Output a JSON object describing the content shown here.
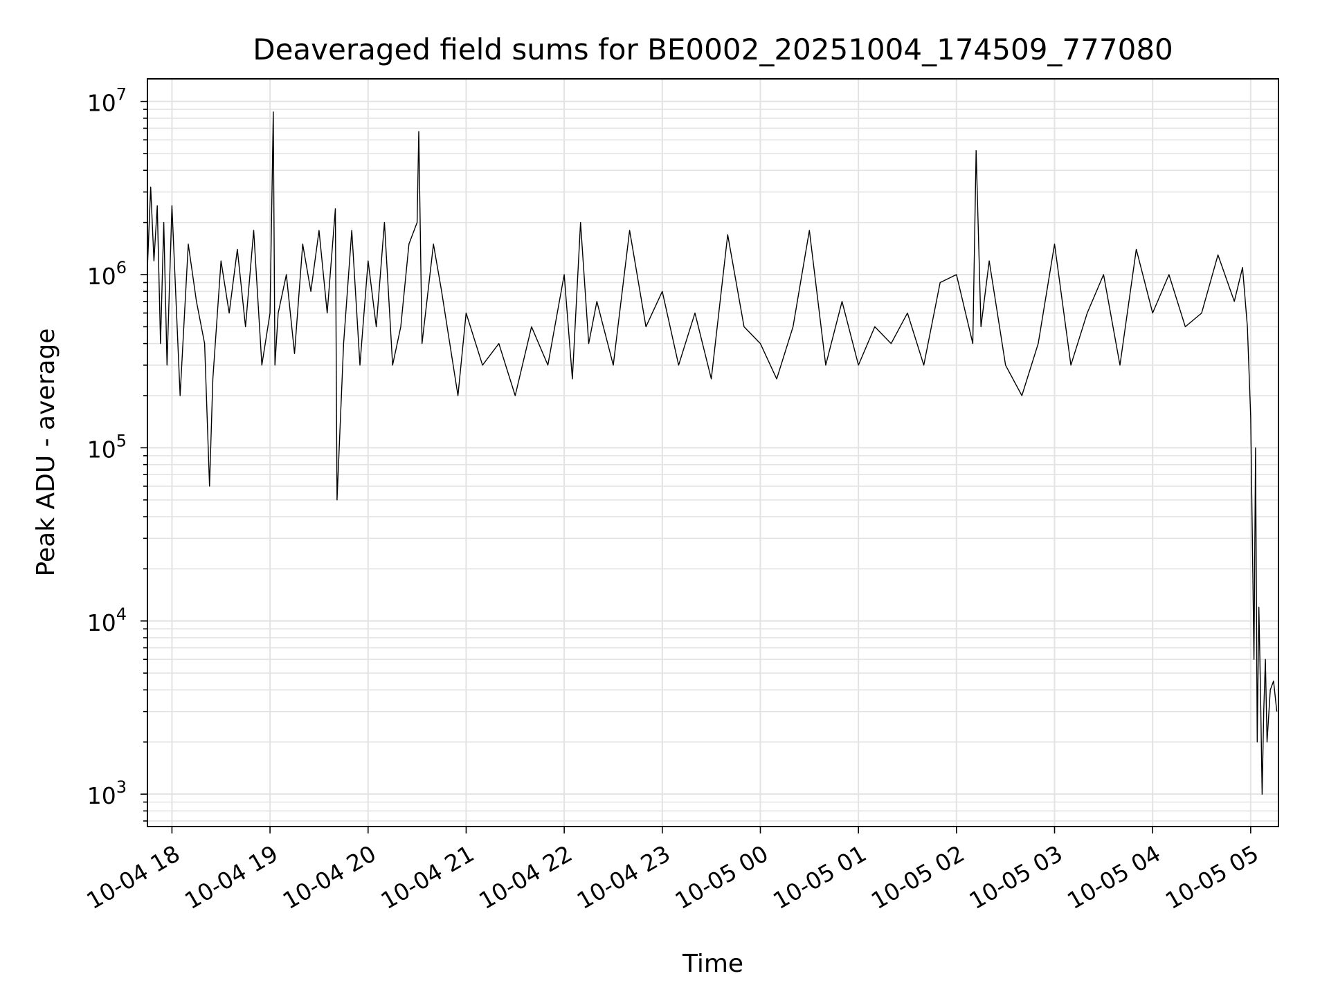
{
  "chart_data": {
    "type": "line",
    "title": "Deaveraged field sums for BE0002_20251004_174509_777080",
    "xlabel": "Time",
    "ylabel": "Peak ADU - average",
    "yscale": "log",
    "ylim": [
      650,
      13500000
    ],
    "xlim": [
      "2025-10-04 17:45",
      "2025-10-05 05:17"
    ],
    "grid": true,
    "line_color": "#000000",
    "grid_color": "#e3e3e3",
    "x_ticks": [
      {
        "label": "10-04 18",
        "value": "2025-10-04 18:00"
      },
      {
        "label": "10-04 19",
        "value": "2025-10-04 19:00"
      },
      {
        "label": "10-04 20",
        "value": "2025-10-04 20:00"
      },
      {
        "label": "10-04 21",
        "value": "2025-10-04 21:00"
      },
      {
        "label": "10-04 22",
        "value": "2025-10-04 22:00"
      },
      {
        "label": "10-04 23",
        "value": "2025-10-04 23:00"
      },
      {
        "label": "10-05 00",
        "value": "2025-10-05 00:00"
      },
      {
        "label": "10-05 01",
        "value": "2025-10-05 01:00"
      },
      {
        "label": "10-05 02",
        "value": "2025-10-05 02:00"
      },
      {
        "label": "10-05 03",
        "value": "2025-10-05 03:00"
      },
      {
        "label": "10-05 04",
        "value": "2025-10-05 04:00"
      },
      {
        "label": "10-05 05",
        "value": "2025-10-05 05:00"
      }
    ],
    "y_ticks": [
      {
        "base": "10",
        "exp": "3",
        "value": 1000
      },
      {
        "base": "10",
        "exp": "4",
        "value": 10000
      },
      {
        "base": "10",
        "exp": "5",
        "value": 100000
      },
      {
        "base": "10",
        "exp": "6",
        "value": 1000000
      },
      {
        "base": "10",
        "exp": "7",
        "value": 10000000
      }
    ],
    "series": [
      {
        "x": [
          "2025-10-04 17:45",
          "2025-10-04 17:47",
          "2025-10-04 17:49",
          "2025-10-04 17:51",
          "2025-10-04 17:53",
          "2025-10-04 17:55",
          "2025-10-04 17:57",
          "2025-10-04 18:00",
          "2025-10-04 18:05",
          "2025-10-04 18:10",
          "2025-10-04 18:15",
          "2025-10-04 18:20",
          "2025-10-04 18:23",
          "2025-10-04 18:25",
          "2025-10-04 18:30",
          "2025-10-04 18:35",
          "2025-10-04 18:40",
          "2025-10-04 18:45",
          "2025-10-04 18:50",
          "2025-10-04 18:55",
          "2025-10-04 19:00",
          "2025-10-04 19:02",
          "2025-10-04 19:03",
          "2025-10-04 19:05",
          "2025-10-04 19:10",
          "2025-10-04 19:15",
          "2025-10-04 19:20",
          "2025-10-04 19:25",
          "2025-10-04 19:30",
          "2025-10-04 19:35",
          "2025-10-04 19:40",
          "2025-10-04 19:41",
          "2025-10-04 19:45",
          "2025-10-04 19:50",
          "2025-10-04 19:55",
          "2025-10-04 20:00",
          "2025-10-04 20:05",
          "2025-10-04 20:10",
          "2025-10-04 20:15",
          "2025-10-04 20:20",
          "2025-10-04 20:25",
          "2025-10-04 20:30",
          "2025-10-04 20:31",
          "2025-10-04 20:33",
          "2025-10-04 20:40",
          "2025-10-04 20:45",
          "2025-10-04 20:50",
          "2025-10-04 20:55",
          "2025-10-04 21:00",
          "2025-10-04 21:10",
          "2025-10-04 21:20",
          "2025-10-04 21:30",
          "2025-10-04 21:40",
          "2025-10-04 21:50",
          "2025-10-04 22:00",
          "2025-10-04 22:05",
          "2025-10-04 22:10",
          "2025-10-04 22:15",
          "2025-10-04 22:20",
          "2025-10-04 22:30",
          "2025-10-04 22:40",
          "2025-10-04 22:50",
          "2025-10-04 23:00",
          "2025-10-04 23:10",
          "2025-10-04 23:20",
          "2025-10-04 23:30",
          "2025-10-04 23:40",
          "2025-10-04 23:50",
          "2025-10-05 00:00",
          "2025-10-05 00:10",
          "2025-10-05 00:20",
          "2025-10-05 00:30",
          "2025-10-05 00:40",
          "2025-10-05 00:50",
          "2025-10-05 01:00",
          "2025-10-05 01:10",
          "2025-10-05 01:20",
          "2025-10-05 01:30",
          "2025-10-05 01:40",
          "2025-10-05 01:50",
          "2025-10-05 02:00",
          "2025-10-05 02:10",
          "2025-10-05 02:12",
          "2025-10-05 02:15",
          "2025-10-05 02:20",
          "2025-10-05 02:30",
          "2025-10-05 02:40",
          "2025-10-05 02:50",
          "2025-10-05 03:00",
          "2025-10-05 03:10",
          "2025-10-05 03:20",
          "2025-10-05 03:30",
          "2025-10-05 03:40",
          "2025-10-05 03:50",
          "2025-10-05 04:00",
          "2025-10-05 04:10",
          "2025-10-05 04:20",
          "2025-10-05 04:30",
          "2025-10-05 04:40",
          "2025-10-05 04:50",
          "2025-10-05 04:55",
          "2025-10-05 04:58",
          "2025-10-05 05:00",
          "2025-10-05 05:02",
          "2025-10-05 05:03",
          "2025-10-05 05:04",
          "2025-10-05 05:05",
          "2025-10-05 05:06",
          "2025-10-05 05:07",
          "2025-10-05 05:08",
          "2025-10-05 05:09",
          "2025-10-05 05:10",
          "2025-10-05 05:12",
          "2025-10-05 05:14",
          "2025-10-05 05:16"
        ],
        "y": [
          1100000,
          3200000,
          1200000,
          2500000,
          400000,
          2000000,
          300000,
          2500000,
          200000,
          1500000,
          700000,
          400000,
          60000,
          250000,
          1200000,
          600000,
          1400000,
          500000,
          1800000,
          300000,
          600000,
          8700000,
          300000,
          600000,
          1000000,
          350000,
          1500000,
          800000,
          1800000,
          600000,
          2400000,
          50000,
          400000,
          1800000,
          300000,
          1200000,
          500000,
          2000000,
          300000,
          500000,
          1500000,
          2000000,
          6700000,
          400000,
          1500000,
          800000,
          400000,
          200000,
          600000,
          300000,
          400000,
          200000,
          500000,
          300000,
          1000000,
          250000,
          2000000,
          400000,
          700000,
          300000,
          1800000,
          500000,
          800000,
          300000,
          600000,
          250000,
          1700000,
          500000,
          400000,
          250000,
          500000,
          1800000,
          300000,
          700000,
          300000,
          500000,
          400000,
          600000,
          300000,
          900000,
          1000000,
          400000,
          5200000,
          500000,
          1200000,
          300000,
          200000,
          400000,
          1500000,
          300000,
          600000,
          1000000,
          300000,
          1400000,
          600000,
          1000000,
          500000,
          600000,
          1300000,
          700000,
          1100000,
          500000,
          150000,
          6000,
          100000,
          2000,
          12000,
          4000,
          1000,
          3000,
          6000,
          2000,
          4000,
          4500,
          3000
        ]
      }
    ]
  }
}
